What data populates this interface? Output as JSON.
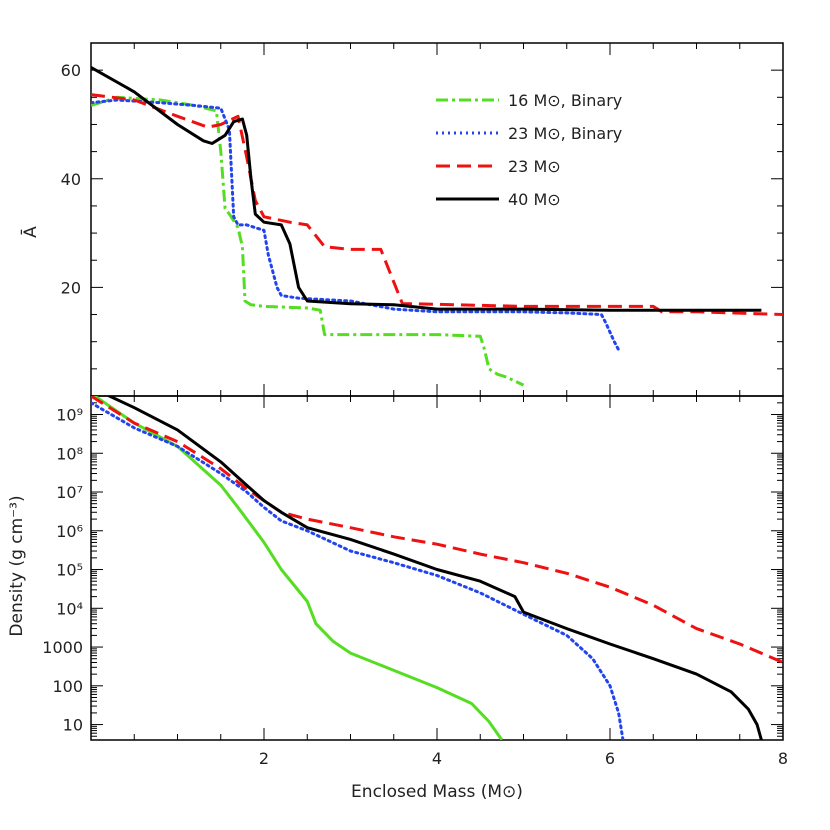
{
  "chart_data": [
    {
      "type": "line",
      "panel": "top",
      "ylabel": "Ā",
      "xlabel": "",
      "xlim": [
        0,
        8
      ],
      "ylim": [
        0,
        65
      ],
      "y_ticks": [
        20,
        40,
        60
      ],
      "legend_position": "top-right",
      "series": [
        {
          "name": "16 M⊙, Binary",
          "color": "#55dd22",
          "style": "dashdot",
          "x": [
            0.0,
            0.3,
            0.8,
            1.2,
            1.45,
            1.5,
            1.55,
            1.6,
            1.7,
            1.75,
            1.78,
            1.85,
            2.0,
            2.5,
            2.65,
            2.7,
            3.0,
            4.0,
            4.5,
            4.55,
            4.6,
            4.7,
            4.8,
            5.0
          ],
          "y": [
            53.5,
            55.0,
            54.5,
            53.5,
            52.5,
            45.0,
            34.5,
            33.5,
            31.0,
            27.5,
            17.5,
            16.8,
            16.5,
            16.2,
            15.8,
            11.3,
            11.3,
            11.3,
            11.0,
            8.5,
            5.0,
            4.0,
            3.5,
            2.0
          ]
        },
        {
          "name": "23 M⊙, Binary",
          "color": "#2244ee",
          "style": "dotted",
          "x": [
            0.0,
            0.3,
            0.8,
            1.2,
            1.5,
            1.6,
            1.65,
            1.7,
            1.8,
            2.0,
            2.05,
            2.15,
            2.2,
            2.4,
            3.0,
            3.5,
            4.0,
            5.0,
            5.5,
            5.9,
            5.95,
            6.05,
            6.1
          ],
          "y": [
            54.0,
            54.5,
            54.0,
            53.5,
            53.0,
            49.0,
            33.0,
            31.5,
            31.5,
            30.5,
            26.0,
            20.0,
            18.5,
            18.0,
            17.5,
            16.0,
            15.5,
            15.5,
            15.3,
            15.0,
            13.5,
            10.0,
            8.5
          ]
        },
        {
          "name": "23 M⊙",
          "color": "#ee1111",
          "style": "dashed",
          "x": [
            0.0,
            0.5,
            1.0,
            1.35,
            1.5,
            1.7,
            1.8,
            1.9,
            2.0,
            2.3,
            2.5,
            2.7,
            3.0,
            3.35,
            3.6,
            3.7,
            5.0,
            6.5,
            6.6,
            7.0,
            8.0
          ],
          "y": [
            55.5,
            54.5,
            51.5,
            49.5,
            50.0,
            51.5,
            44.0,
            36.0,
            33.0,
            32.0,
            31.5,
            27.5,
            27.0,
            27.0,
            17.0,
            17.0,
            16.5,
            16.5,
            15.5,
            15.5,
            15.0
          ]
        },
        {
          "name": "40 M⊙",
          "color": "#000000",
          "style": "solid",
          "x": [
            0.0,
            0.5,
            1.0,
            1.3,
            1.4,
            1.55,
            1.65,
            1.75,
            1.8,
            1.85,
            1.9,
            2.0,
            2.2,
            2.3,
            2.4,
            2.5,
            3.0,
            3.5,
            4.0,
            5.0,
            6.0,
            7.0,
            7.75
          ],
          "y": [
            60.5,
            56.0,
            50.0,
            47.0,
            46.5,
            48.0,
            50.5,
            51.0,
            48.0,
            40.0,
            33.5,
            32.0,
            31.5,
            28.0,
            20.0,
            17.5,
            17.0,
            16.8,
            16.0,
            16.0,
            15.8,
            15.8,
            15.8
          ]
        }
      ]
    },
    {
      "type": "line",
      "panel": "bottom",
      "xlabel": "Enclosed Mass (M⊙)",
      "ylabel": "Density (g cm⁻³)",
      "y_scale": "log",
      "xlim": [
        0,
        8
      ],
      "ylim": [
        4,
        3000000000
      ],
      "x_ticks": [
        "2",
        "4",
        "6",
        "8"
      ],
      "y_ticks": [
        "10⁹",
        "10⁸",
        "10⁷",
        "10⁶",
        "10⁵",
        "10⁴",
        "1000",
        "100",
        "10"
      ],
      "series": [
        {
          "name": "16 M⊙, Binary",
          "color": "#55dd22",
          "style": "solid",
          "x": [
            0.0,
            0.5,
            1.0,
            1.5,
            1.7,
            2.0,
            2.2,
            2.5,
            2.6,
            2.8,
            3.0,
            3.5,
            4.0,
            4.4,
            4.6,
            4.75
          ],
          "y": [
            3500000000.0,
            600000000.0,
            150000000.0,
            15000000.0,
            4000000.0,
            500000.0,
            100000.0,
            15000.0,
            4000,
            1400,
            700,
            250,
            90,
            35,
            12,
            4
          ]
        },
        {
          "name": "23 M⊙, Binary",
          "color": "#2244ee",
          "style": "dotted",
          "x": [
            0.0,
            0.5,
            1.0,
            1.5,
            1.8,
            2.0,
            2.2,
            2.5,
            3.0,
            3.5,
            4.0,
            4.5,
            5.0,
            5.5,
            5.8,
            6.0,
            6.1,
            6.15
          ],
          "y": [
            2000000000.0,
            450000000.0,
            150000000.0,
            30000000.0,
            10000000.0,
            4000000.0,
            1800000.0,
            1000000.0,
            300000.0,
            150000.0,
            70000.0,
            25000.0,
            7000,
            2000,
            500,
            100,
            20,
            4
          ]
        },
        {
          "name": "23 M⊙",
          "color": "#ee1111",
          "style": "dashed",
          "x": [
            0.0,
            0.5,
            1.0,
            1.5,
            1.8,
            2.0,
            2.2,
            2.5,
            3.0,
            3.5,
            4.0,
            4.5,
            5.0,
            5.5,
            6.0,
            6.5,
            7.0,
            7.5,
            8.0
          ],
          "y": [
            3000000000.0,
            600000000.0,
            200000000.0,
            40000000.0,
            12000000.0,
            6000000.0,
            3000000.0,
            2000000.0,
            1200000.0,
            700000.0,
            450000.0,
            250000.0,
            150000.0,
            80000.0,
            35000.0,
            12000.0,
            3000,
            1200,
            400
          ]
        },
        {
          "name": "40 M⊙",
          "color": "#000000",
          "style": "solid",
          "x": [
            0.0,
            0.5,
            1.0,
            1.5,
            1.8,
            2.0,
            2.2,
            2.5,
            3.0,
            3.5,
            4.0,
            4.5,
            4.9,
            5.0,
            5.5,
            6.0,
            6.5,
            7.0,
            7.4,
            7.6,
            7.7,
            7.75
          ],
          "y": [
            5000000000.0,
            1500000000.0,
            400000000.0,
            60000000.0,
            15000000.0,
            6000000.0,
            3000000.0,
            1200000.0,
            600000.0,
            250000.0,
            100000.0,
            50000.0,
            20000.0,
            8000,
            3000,
            1200,
            500,
            200,
            70,
            25,
            10,
            4
          ]
        }
      ]
    }
  ]
}
